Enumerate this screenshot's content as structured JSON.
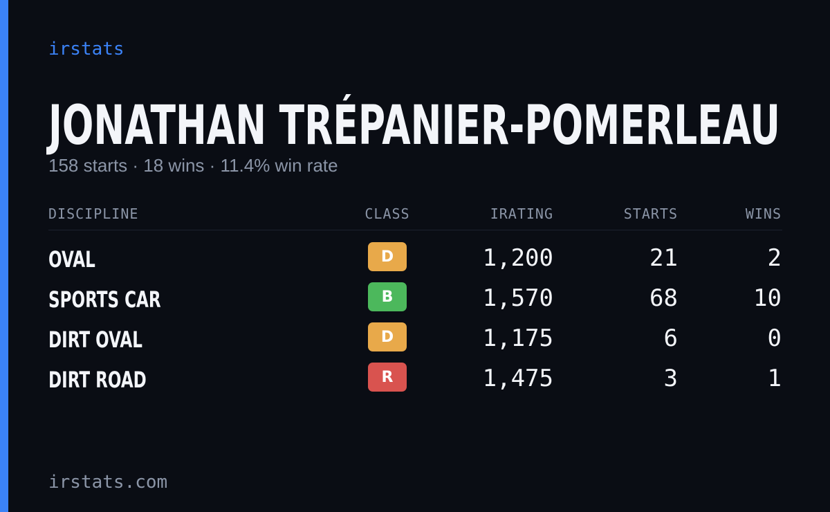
{
  "brand": "irstats",
  "title": "JONATHAN TRÉPANIER-POMERLEAU",
  "subtitle": "158 starts · 18 wins · 11.4% win rate",
  "table": {
    "headers": [
      "DISCIPLINE",
      "CLASS",
      "IRATING",
      "STARTS",
      "WINS"
    ],
    "rows": [
      [
        "OVAL",
        "D",
        "1,200",
        "21",
        "2"
      ],
      [
        "SPORTS CAR",
        "B",
        "1,570",
        "68",
        "10"
      ],
      [
        "DIRT OVAL",
        "D",
        "1,175",
        "6",
        "0"
      ],
      [
        "DIRT ROAD",
        "R",
        "1,475",
        "3",
        "1"
      ]
    ]
  },
  "footer": "irstats.com"
}
